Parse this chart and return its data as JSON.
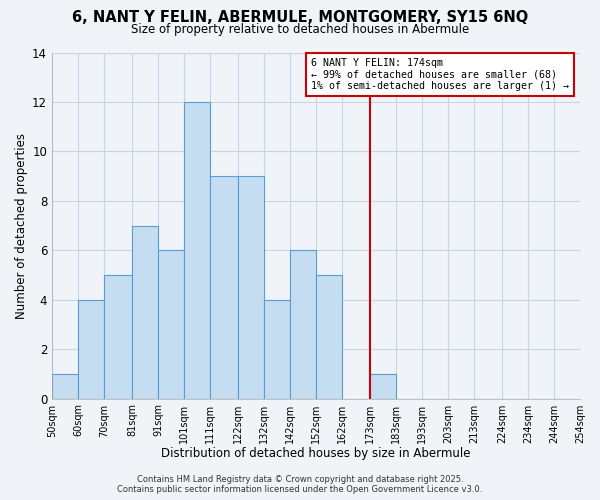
{
  "title": "6, NANT Y FELIN, ABERMULE, MONTGOMERY, SY15 6NQ",
  "subtitle": "Size of property relative to detached houses in Abermule",
  "xlabel": "Distribution of detached houses by size in Abermule",
  "ylabel": "Number of detached properties",
  "bar_edges": [
    50,
    60,
    70,
    81,
    91,
    101,
    111,
    122,
    132,
    142,
    152,
    162,
    173,
    183,
    193,
    203,
    213,
    224,
    234,
    244,
    254
  ],
  "bar_heights": [
    1,
    4,
    5,
    7,
    6,
    12,
    9,
    9,
    4,
    6,
    5,
    0,
    1,
    0,
    0,
    0,
    0,
    0,
    0,
    0
  ],
  "bar_color": "#c5ddf0",
  "bar_edge_color": "#5b9bd5",
  "grid_color": "#c8d4e0",
  "background_color": "#f0f4f8",
  "tick_labels": [
    "50sqm",
    "60sqm",
    "70sqm",
    "81sqm",
    "91sqm",
    "101sqm",
    "111sqm",
    "122sqm",
    "132sqm",
    "142sqm",
    "152sqm",
    "162sqm",
    "173sqm",
    "183sqm",
    "193sqm",
    "203sqm",
    "213sqm",
    "224sqm",
    "234sqm",
    "244sqm",
    "254sqm"
  ],
  "vline_x": 173,
  "vline_color": "#cc0000",
  "ylim": [
    0,
    14
  ],
  "yticks": [
    0,
    2,
    4,
    6,
    8,
    10,
    12,
    14
  ],
  "annotation_title": "6 NANT Y FELIN: 174sqm",
  "annotation_line1": "← 99% of detached houses are smaller (68)",
  "annotation_line2": "1% of semi-detached houses are larger (1) →",
  "annotation_box_color": "#ffffff",
  "annotation_box_edge_color": "#cc0000",
  "footer_line1": "Contains HM Land Registry data © Crown copyright and database right 2025.",
  "footer_line2": "Contains public sector information licensed under the Open Government Licence v3.0."
}
